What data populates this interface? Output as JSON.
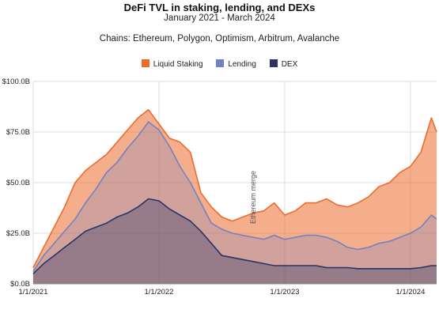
{
  "chart_data": {
    "type": "area",
    "title": "DeFi TVL in staking, lending, and DEXs",
    "subtitle": "January 2021 - March 2024",
    "note": "Chains: Ethereum, Polygon, Optimism, Arbitrum, Avalanche",
    "y_ticks": [
      "$0.0B",
      "$25.0B",
      "$50.0B",
      "$75.0B",
      "$100.0B"
    ],
    "x_ticks": [
      "1/1/2021",
      "1/1/2022",
      "1/1/2023",
      "1/1/2024"
    ],
    "ylim": [
      0,
      100
    ],
    "xlim": [
      0,
      38.5
    ],
    "grid": true,
    "legend_position": "top-center",
    "annotation": "Ethereum merge",
    "x": [
      0,
      1,
      2,
      3,
      4,
      5,
      6,
      7,
      8,
      9,
      10,
      11,
      12,
      13,
      14,
      15,
      16,
      17,
      18,
      19,
      20,
      21,
      22,
      23,
      24,
      25,
      26,
      27,
      28,
      29,
      30,
      31,
      32,
      33,
      34,
      35,
      36,
      37,
      38,
      38.5
    ],
    "series": [
      {
        "name": "DEX",
        "color": "#283468",
        "values": [
          5,
          10,
          14,
          18,
          22,
          26,
          28,
          30,
          33,
          35,
          38,
          42,
          41,
          37,
          34,
          31,
          26,
          20,
          14,
          13,
          12,
          11,
          10,
          9,
          9,
          9,
          9,
          9,
          8,
          8,
          8,
          7.5,
          7.5,
          7.5,
          7.5,
          7.5,
          7.5,
          8,
          9,
          9
        ]
      },
      {
        "name": "Lending",
        "color": "#7282c1",
        "values": [
          6,
          14,
          20,
          26,
          32,
          40,
          47,
          55,
          60,
          67,
          73,
          80,
          76,
          68,
          58,
          50,
          40,
          30,
          27,
          25,
          24,
          23,
          22,
          24,
          22,
          23,
          24,
          24,
          23,
          21,
          18,
          17,
          18,
          20,
          21,
          23,
          25,
          28,
          34,
          32
        ]
      },
      {
        "name": "Liquid Staking",
        "color": "#ec6b2d",
        "values": [
          8,
          18,
          28,
          38,
          50,
          56,
          60,
          64,
          70,
          76,
          82,
          86,
          79,
          72,
          70,
          65,
          45,
          38,
          33,
          31,
          33,
          35,
          36,
          40,
          34,
          36,
          40,
          40,
          42,
          39,
          38,
          40,
          43,
          48,
          50,
          55,
          58,
          65,
          82,
          75
        ]
      }
    ]
  }
}
